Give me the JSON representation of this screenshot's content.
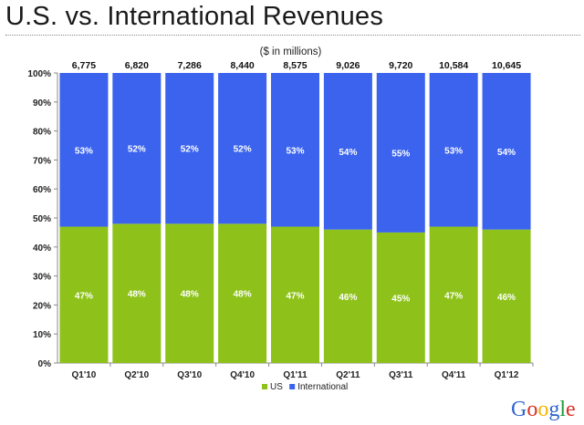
{
  "page": {
    "title": "U.S. vs. International Revenues"
  },
  "brand": {
    "name": "Google",
    "letter_colors": [
      "#3366cc",
      "#d93025",
      "#f4b400",
      "#3366cc",
      "#1e9c3a",
      "#d93025"
    ]
  },
  "chart_data": {
    "type": "bar",
    "stacked": "percent",
    "title": "U.S. vs. International Revenues",
    "subtitle": "($ in millions)",
    "categories": [
      "Q1'10",
      "Q2'10",
      "Q3'10",
      "Q4'10",
      "Q1'11",
      "Q2'11",
      "Q3'11",
      "Q4'11",
      "Q1'12"
    ],
    "totals": [
      "6,775",
      "6,820",
      "7,286",
      "8,440",
      "8,575",
      "9,026",
      "9,720",
      "10,584",
      "10,645"
    ],
    "series": [
      {
        "name": "US",
        "color": "#8ec21a",
        "values": [
          47,
          48,
          48,
          48,
          47,
          46,
          45,
          47,
          46
        ],
        "labels": [
          "47%",
          "48%",
          "48%",
          "48%",
          "47%",
          "46%",
          "45%",
          "47%",
          "46%"
        ]
      },
      {
        "name": "International",
        "color": "#3b63ee",
        "values": [
          53,
          52,
          52,
          52,
          53,
          54,
          55,
          53,
          54
        ],
        "labels": [
          "53%",
          "52%",
          "52%",
          "52%",
          "53%",
          "54%",
          "55%",
          "53%",
          "54%"
        ]
      }
    ],
    "yticks": [
      "0%",
      "10%",
      "20%",
      "30%",
      "40%",
      "50%",
      "60%",
      "70%",
      "80%",
      "90%",
      "100%"
    ],
    "ylim": [
      0,
      100
    ],
    "legend": "bottom-center",
    "grid": false
  }
}
